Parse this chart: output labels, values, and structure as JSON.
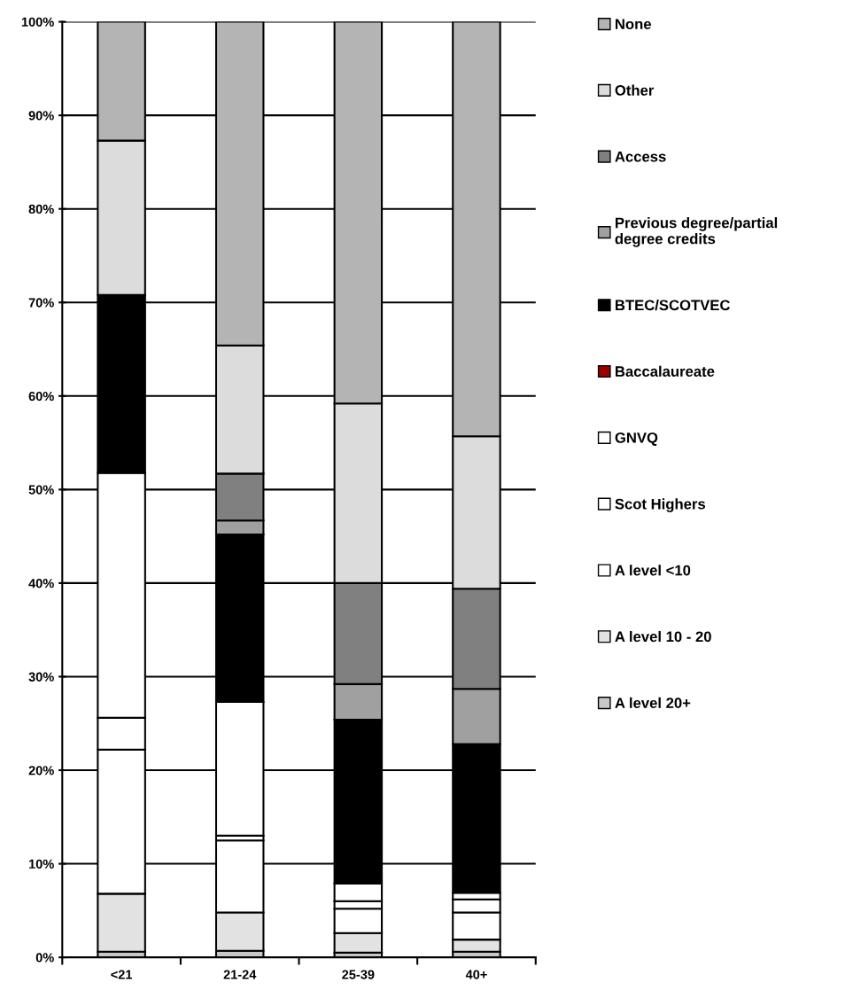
{
  "chart_data": {
    "type": "bar",
    "stacked": true,
    "categories": [
      "<21",
      "21-24",
      "25-39",
      "40+"
    ],
    "series": [
      {
        "name": "A level 20+",
        "color": "#c8c8c8",
        "values": [
          0.6,
          0.7,
          0.5,
          0.6
        ]
      },
      {
        "name": "A level 10 - 20",
        "color": "#e2e2e2",
        "values": [
          6.2,
          4.1,
          2.1,
          1.3
        ]
      },
      {
        "name": "A level <10",
        "color": "#ffffff",
        "values": [
          15.4,
          7.7,
          2.6,
          2.9
        ]
      },
      {
        "name": "Scot Highers",
        "color": "#ffffff",
        "values": [
          3.4,
          0.5,
          0.8,
          1.4
        ]
      },
      {
        "name": "GNVQ",
        "color": "#ffffff",
        "values": [
          26.2,
          14.3,
          1.9,
          0.7
        ]
      },
      {
        "name": "Baccalaureate",
        "color": "#990000",
        "values": [
          0,
          0,
          0,
          0
        ]
      },
      {
        "name": "BTEC/SCOTVEC",
        "color": "#000000",
        "values": [
          19.0,
          17.9,
          17.5,
          15.9
        ]
      },
      {
        "name": "Previous degree/partial degree credits",
        "color": "#a0a0a0",
        "values": [
          0,
          1.5,
          3.8,
          5.9
        ]
      },
      {
        "name": "Access",
        "color": "#808080",
        "values": [
          0,
          5.0,
          10.8,
          10.7
        ]
      },
      {
        "name": "Other",
        "color": "#dcdcdc",
        "values": [
          16.5,
          13.7,
          19.2,
          16.3
        ]
      },
      {
        "name": "None",
        "color": "#b4b4b4",
        "values": [
          12.7,
          34.6,
          40.8,
          44.3
        ]
      }
    ],
    "ylim": [
      0,
      100
    ],
    "yticks": [
      {
        "value": 0,
        "label": "0%"
      },
      {
        "value": 10,
        "label": "10%"
      },
      {
        "value": 20,
        "label": "20%"
      },
      {
        "value": 30,
        "label": "30%"
      },
      {
        "value": 40,
        "label": "40%"
      },
      {
        "value": 50,
        "label": "50%"
      },
      {
        "value": 60,
        "label": "60%"
      },
      {
        "value": 70,
        "label": "70%"
      },
      {
        "value": 80,
        "label": "80%"
      },
      {
        "value": 90,
        "label": "90%"
      },
      {
        "value": 100,
        "label": "100%"
      }
    ],
    "grid": "y",
    "legend": "right"
  }
}
